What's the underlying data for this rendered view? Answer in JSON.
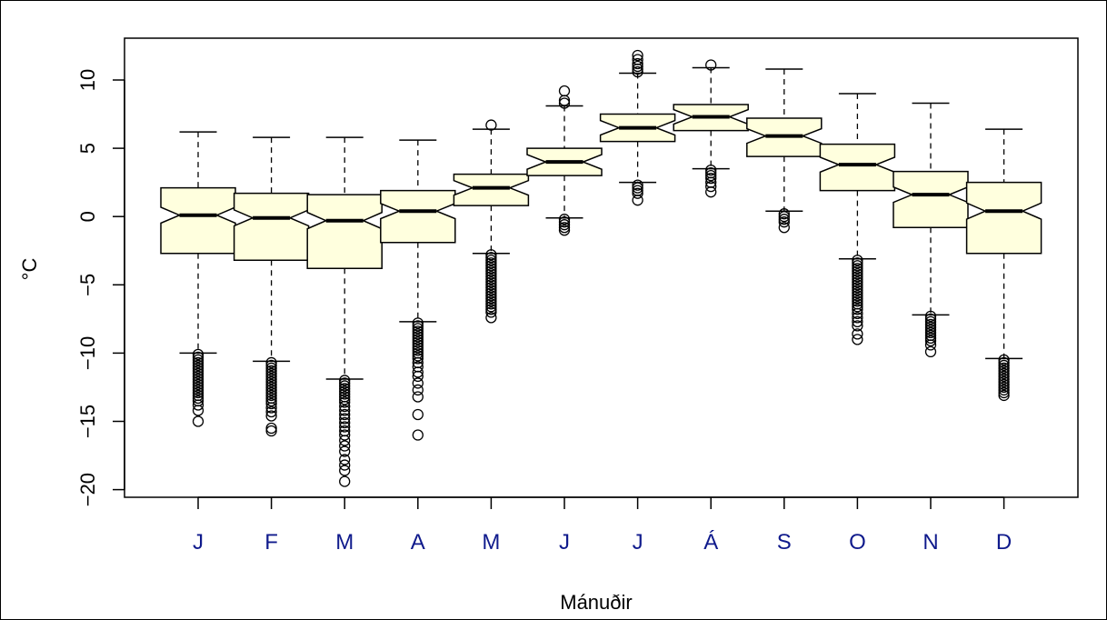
{
  "chart_data": {
    "type": "boxplot",
    "notched": true,
    "xlabel": "Mánuðir",
    "ylabel": "°C",
    "ylim": [
      -21,
      13.3
    ],
    "yticks": [
      -20,
      -15,
      -10,
      -5,
      0,
      5,
      10
    ],
    "ytick_labels": [
      "−20",
      "−15",
      "−10",
      "−5",
      "0",
      "5",
      "10"
    ],
    "categories": [
      "J",
      "F",
      "M",
      "A",
      "M",
      "J",
      "J",
      "Á",
      "S",
      "O",
      "N",
      "D"
    ],
    "colors": {
      "box_fill": "#ffffde",
      "category_label": "#0f1a8c",
      "line": "#000000",
      "background": "#ffffff"
    },
    "boxes": [
      {
        "label": "J",
        "whisker_low": -10.0,
        "q1": -2.7,
        "median": 0.1,
        "q3": 2.1,
        "whisker_high": 6.2,
        "outliers": [
          -10.1,
          -10.3,
          -10.5,
          -10.7,
          -10.9,
          -11.1,
          -11.3,
          -11.5,
          -11.7,
          -11.9,
          -12.1,
          -12.3,
          -12.5,
          -12.7,
          -12.9,
          -13.1,
          -13.3,
          -13.5,
          -13.8,
          -14.2,
          -15.0
        ]
      },
      {
        "label": "F",
        "whisker_low": -10.6,
        "q1": -3.2,
        "median": -0.1,
        "q3": 1.7,
        "whisker_high": 5.8,
        "outliers": [
          -10.7,
          -10.9,
          -11.1,
          -11.3,
          -11.5,
          -11.7,
          -11.9,
          -12.1,
          -12.3,
          -12.5,
          -12.7,
          -12.9,
          -13.1,
          -13.3,
          -13.5,
          -13.7,
          -14.0,
          -14.3,
          -14.6,
          -15.5,
          -15.7
        ]
      },
      {
        "label": "M",
        "whisker_low": -11.9,
        "q1": -3.8,
        "median": -0.3,
        "q3": 1.6,
        "whisker_high": 5.8,
        "outliers": [
          -12.0,
          -12.2,
          -12.4,
          -12.6,
          -12.8,
          -13.0,
          -13.2,
          -13.4,
          -13.6,
          -13.9,
          -14.2,
          -14.5,
          -14.8,
          -15.1,
          -15.4,
          -15.7,
          -16.0,
          -16.4,
          -16.8,
          -17.2,
          -17.8,
          -18.2,
          -18.6,
          -19.4
        ]
      },
      {
        "label": "A",
        "whisker_low": -7.7,
        "q1": -1.9,
        "median": 0.4,
        "q3": 1.9,
        "whisker_high": 5.6,
        "outliers": [
          -7.8,
          -8.0,
          -8.2,
          -8.4,
          -8.6,
          -8.8,
          -9.0,
          -9.2,
          -9.4,
          -9.6,
          -9.8,
          -10.0,
          -10.2,
          -10.4,
          -10.7,
          -11.0,
          -11.4,
          -11.7,
          -12.2,
          -12.7,
          -13.2,
          -14.5,
          -16.0
        ]
      },
      {
        "label": "M",
        "whisker_low": -2.7,
        "q1": 0.8,
        "median": 2.1,
        "q3": 3.1,
        "whisker_high": 6.4,
        "outliers": [
          6.7,
          -2.8,
          -3.0,
          -3.2,
          -3.4,
          -3.6,
          -3.8,
          -4.0,
          -4.2,
          -4.4,
          -4.6,
          -4.8,
          -5.0,
          -5.2,
          -5.4,
          -5.6,
          -5.8,
          -6.0,
          -6.2,
          -6.4,
          -6.6,
          -6.8,
          -7.0,
          -7.4
        ]
      },
      {
        "label": "J",
        "whisker_low": -0.1,
        "q1": 3.0,
        "median": 4.0,
        "q3": 5.0,
        "whisker_high": 8.1,
        "outliers": [
          8.3,
          8.5,
          9.2,
          -0.2,
          -0.4,
          -0.6,
          -0.8,
          -1.0
        ]
      },
      {
        "label": "J",
        "whisker_low": 2.5,
        "q1": 5.5,
        "median": 6.5,
        "q3": 7.5,
        "whisker_high": 10.5,
        "outliers": [
          10.6,
          10.8,
          11.0,
          11.2,
          11.5,
          11.8,
          2.3,
          2.1,
          1.9,
          1.7,
          1.2
        ]
      },
      {
        "label": "Á",
        "whisker_low": 3.5,
        "q1": 6.3,
        "median": 7.3,
        "q3": 8.2,
        "whisker_high": 10.9,
        "outliers": [
          11.1,
          3.4,
          3.2,
          3.0,
          2.8,
          2.5,
          2.2,
          1.8
        ]
      },
      {
        "label": "S",
        "whisker_low": 0.4,
        "q1": 4.4,
        "median": 5.9,
        "q3": 7.2,
        "whisker_high": 10.8,
        "outliers": [
          0.2,
          0.0,
          -0.2,
          -0.4,
          -0.8
        ]
      },
      {
        "label": "O",
        "whisker_low": -3.1,
        "q1": 1.9,
        "median": 3.8,
        "q3": 5.3,
        "whisker_high": 9.0,
        "outliers": [
          -3.2,
          -3.4,
          -3.6,
          -3.8,
          -4.0,
          -4.2,
          -4.4,
          -4.6,
          -4.8,
          -5.0,
          -5.2,
          -5.4,
          -5.6,
          -5.8,
          -6.0,
          -6.2,
          -6.4,
          -6.6,
          -6.8,
          -7.1,
          -7.4,
          -7.7,
          -8.0,
          -8.6,
          -9.0
        ]
      },
      {
        "label": "N",
        "whisker_low": -7.2,
        "q1": -0.8,
        "median": 1.6,
        "q3": 3.3,
        "whisker_high": 8.3,
        "outliers": [
          -7.3,
          -7.5,
          -7.7,
          -7.9,
          -8.1,
          -8.3,
          -8.5,
          -8.7,
          -8.9,
          -9.1,
          -9.4,
          -9.9
        ]
      },
      {
        "label": "D",
        "whisker_low": -10.4,
        "q1": -2.7,
        "median": 0.4,
        "q3": 2.5,
        "whisker_high": 6.4,
        "outliers": [
          -10.5,
          -10.7,
          -10.9,
          -11.1,
          -11.3,
          -11.5,
          -11.7,
          -11.9,
          -12.1,
          -12.3,
          -12.5,
          -12.7,
          -12.9,
          -13.1
        ]
      }
    ]
  }
}
